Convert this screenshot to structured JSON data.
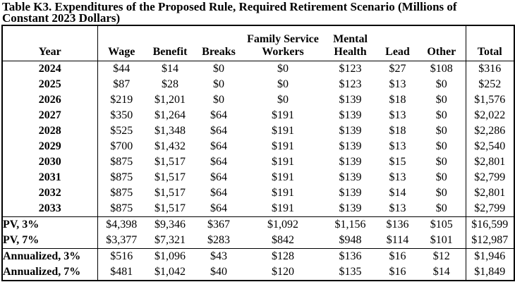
{
  "title": "Table K3. Expenditures of the Proposed Rule, Required Retirement Scenario (Millions of\nConstant 2023 Dollars)",
  "table": {
    "header": {
      "year": "Year",
      "wage": "Wage",
      "benefit": "Benefit",
      "breaks": "Breaks",
      "family_service_workers": "Family Service\nWorkers",
      "mental_health": "Mental\nHealth",
      "lead": "Lead",
      "other": "Other",
      "total": "Total"
    },
    "year_rows": [
      {
        "label": "2024",
        "values": [
          "$44",
          "$14",
          "$0",
          "$0",
          "$123",
          "$27",
          "$108",
          "$316"
        ]
      },
      {
        "label": "2025",
        "values": [
          "$87",
          "$28",
          "$0",
          "$0",
          "$123",
          "$13",
          "$0",
          "$252"
        ]
      },
      {
        "label": "2026",
        "values": [
          "$219",
          "$1,201",
          "$0",
          "$0",
          "$139",
          "$18",
          "$0",
          "$1,576"
        ]
      },
      {
        "label": "2027",
        "values": [
          "$350",
          "$1,264",
          "$64",
          "$191",
          "$139",
          "$13",
          "$0",
          "$2,022"
        ]
      },
      {
        "label": "2028",
        "values": [
          "$525",
          "$1,348",
          "$64",
          "$191",
          "$139",
          "$18",
          "$0",
          "$2,286"
        ]
      },
      {
        "label": "2029",
        "values": [
          "$700",
          "$1,432",
          "$64",
          "$191",
          "$139",
          "$13",
          "$0",
          "$2,540"
        ]
      },
      {
        "label": "2030",
        "values": [
          "$875",
          "$1,517",
          "$64",
          "$191",
          "$139",
          "$15",
          "$0",
          "$2,801"
        ]
      },
      {
        "label": "2031",
        "values": [
          "$875",
          "$1,517",
          "$64",
          "$191",
          "$139",
          "$13",
          "$0",
          "$2,799"
        ]
      },
      {
        "label": "2032",
        "values": [
          "$875",
          "$1,517",
          "$64",
          "$191",
          "$139",
          "$14",
          "$0",
          "$2,801"
        ]
      },
      {
        "label": "2033",
        "values": [
          "$875",
          "$1,517",
          "$64",
          "$191",
          "$139",
          "$13",
          "$0",
          "$2,799"
        ]
      }
    ],
    "pv_rows": [
      {
        "label": "PV, 3%",
        "values": [
          "$4,398",
          "$9,346",
          "$367",
          "$1,092",
          "$1,156",
          "$136",
          "$105",
          "$16,599"
        ]
      },
      {
        "label": "PV, 7%",
        "values": [
          "$3,377",
          "$7,321",
          "$283",
          "$842",
          "$948",
          "$114",
          "$101",
          "$12,987"
        ]
      }
    ],
    "annualized_rows": [
      {
        "label": "Annualized, 3%",
        "values": [
          "$516",
          "$1,096",
          "$43",
          "$128",
          "$136",
          "$16",
          "$12",
          "$1,946"
        ]
      },
      {
        "label": "Annualized, 7%",
        "values": [
          "$481",
          "$1,042",
          "$40",
          "$120",
          "$135",
          "$16",
          "$14",
          "$1,849"
        ]
      }
    ]
  }
}
